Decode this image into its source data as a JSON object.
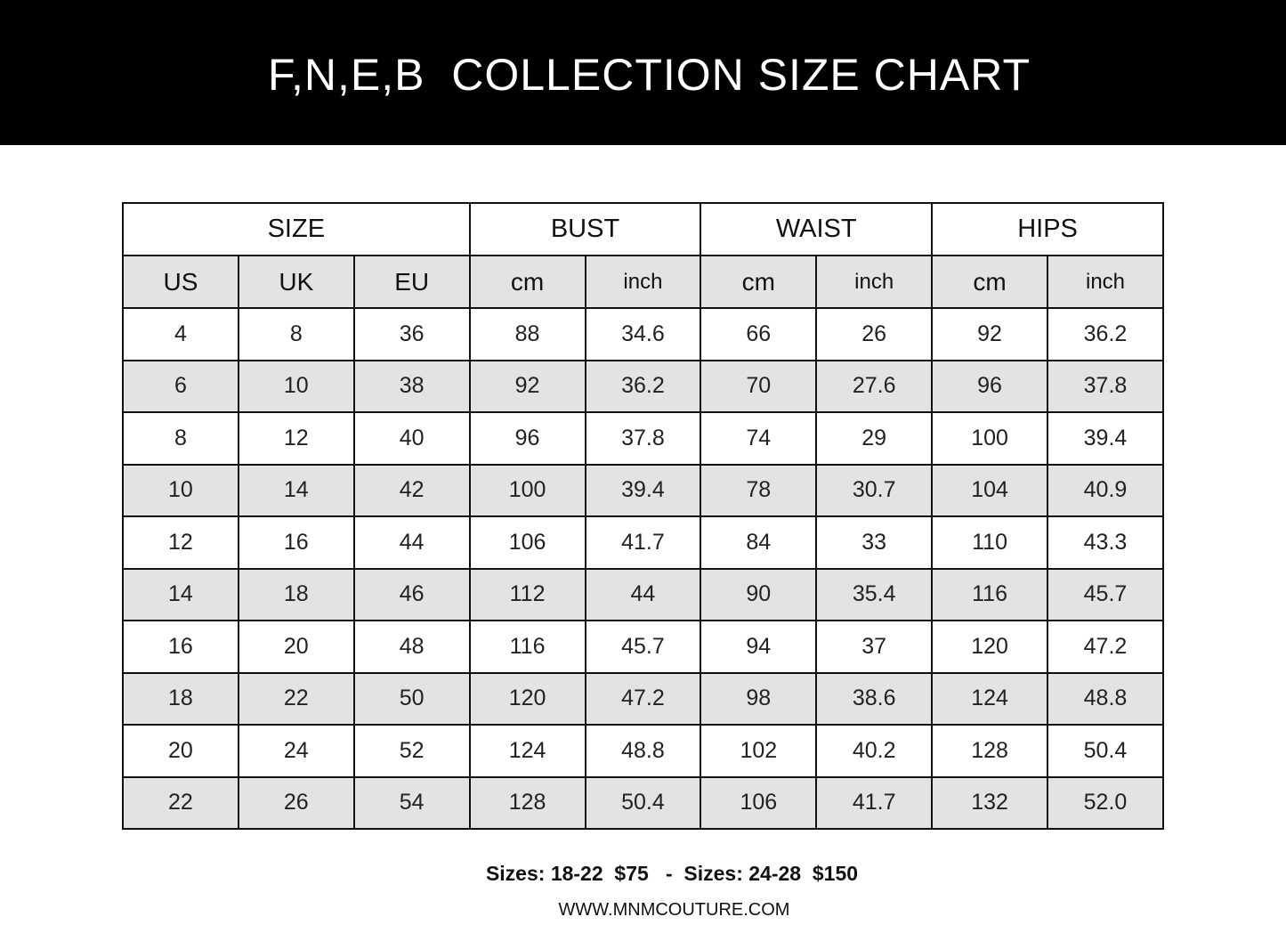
{
  "title": "F,N,E,B  COLLECTION SIZE CHART",
  "groups": [
    "SIZE",
    "BUST",
    "WAIST",
    "HIPS"
  ],
  "subheaders": [
    "US",
    "UK",
    "EU",
    "cm",
    "inch",
    "cm",
    "inch",
    "cm",
    "inch"
  ],
  "rows": [
    [
      "4",
      "8",
      "36",
      "88",
      "34.6",
      "66",
      "26",
      "92",
      "36.2"
    ],
    [
      "6",
      "10",
      "38",
      "92",
      "36.2",
      "70",
      "27.6",
      "96",
      "37.8"
    ],
    [
      "8",
      "12",
      "40",
      "96",
      "37.8",
      "74",
      "29",
      "100",
      "39.4"
    ],
    [
      "10",
      "14",
      "42",
      "100",
      "39.4",
      "78",
      "30.7",
      "104",
      "40.9"
    ],
    [
      "12",
      "16",
      "44",
      "106",
      "41.7",
      "84",
      "33",
      "110",
      "43.3"
    ],
    [
      "14",
      "18",
      "46",
      "112",
      "44",
      "90",
      "35.4",
      "116",
      "45.7"
    ],
    [
      "16",
      "20",
      "48",
      "116",
      "45.7",
      "94",
      "37",
      "120",
      "47.2"
    ],
    [
      "18",
      "22",
      "50",
      "120",
      "47.2",
      "98",
      "38.6",
      "124",
      "48.8"
    ],
    [
      "20",
      "24",
      "52",
      "124",
      "48.8",
      "102",
      "40.2",
      "128",
      "50.4"
    ],
    [
      "22",
      "26",
      "54",
      "128",
      "50.4",
      "106",
      "41.7",
      "132",
      "52.0"
    ]
  ],
  "pricing": "Sizes: 18-22  $75   -  Sizes: 24-28  $150",
  "website": "WWW.MNMCOUTURE.COM",
  "colors": {
    "banner": "#000000",
    "alt_row": "#e3e3e3"
  }
}
